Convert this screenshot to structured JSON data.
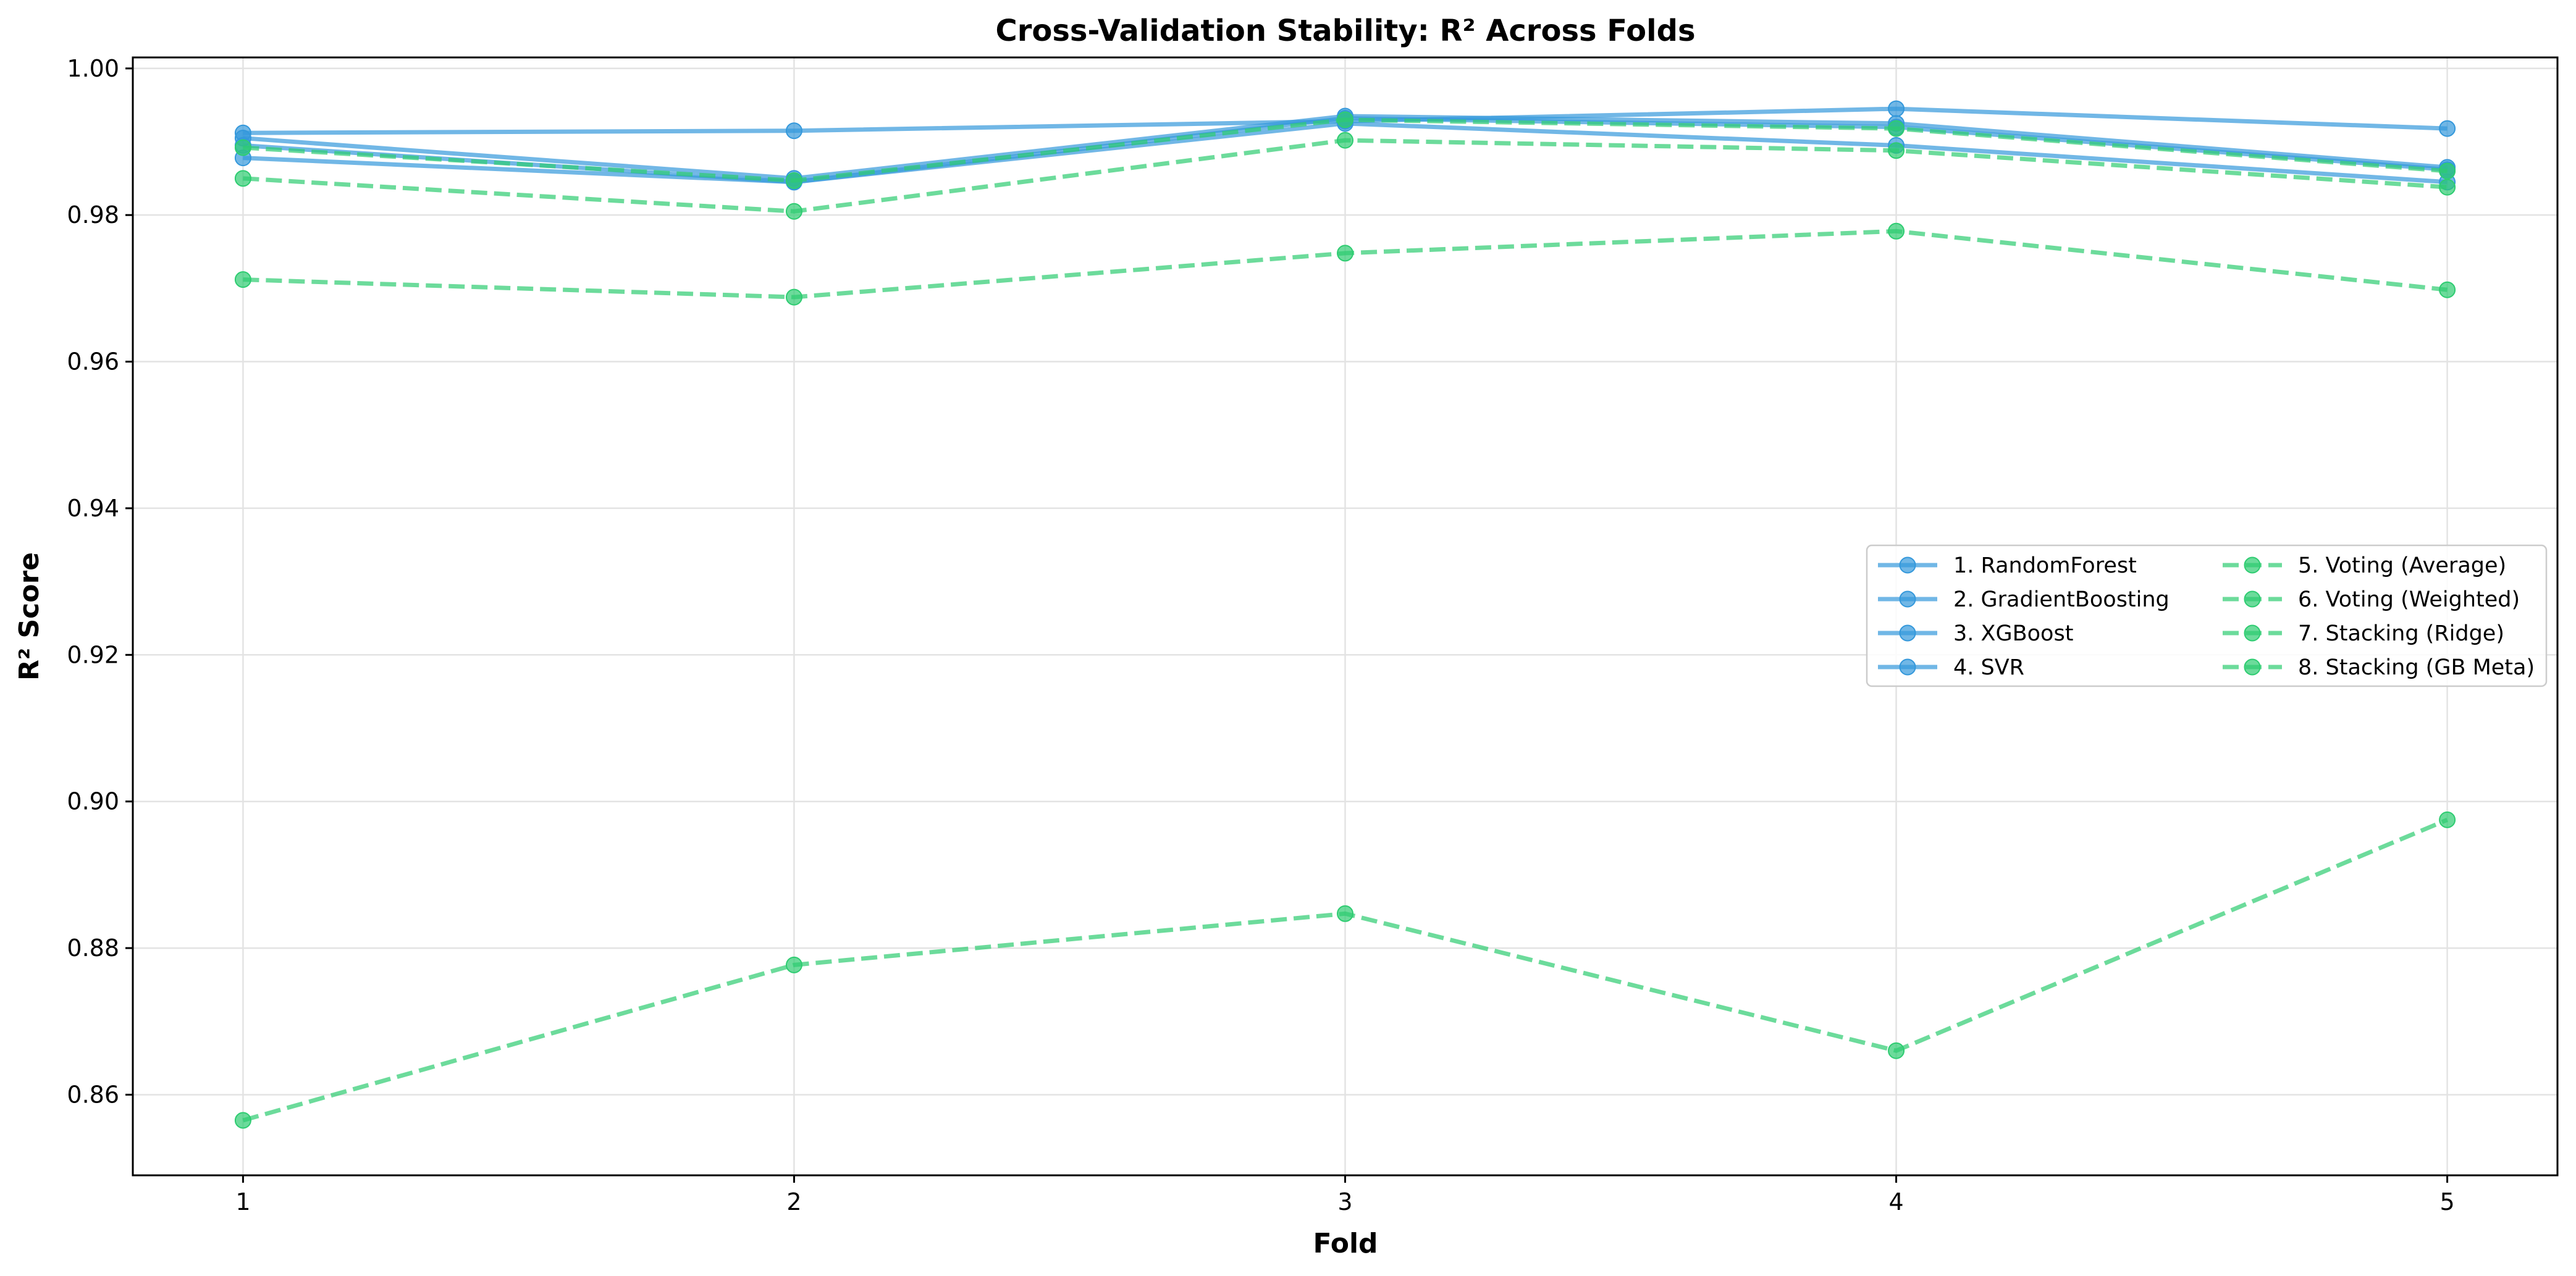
{
  "chart_data": {
    "type": "line",
    "title": "Cross-Validation Stability: R² Across Folds",
    "xlabel": "Fold",
    "ylabel": "R² Score",
    "x": [
      1,
      2,
      3,
      4,
      5
    ],
    "xlim": [
      0.8,
      5.2
    ],
    "ylim": [
      0.849,
      1.0015
    ],
    "yticks": [
      0.86,
      0.88,
      0.9,
      0.92,
      0.94,
      0.96,
      0.98,
      1.0
    ],
    "ytick_labels": [
      "0.86",
      "0.88",
      "0.90",
      "0.92",
      "0.94",
      "0.96",
      "0.98",
      "1.00"
    ],
    "xticks": [
      1,
      2,
      3,
      4,
      5
    ],
    "xtick_labels": [
      "1",
      "2",
      "3",
      "4",
      "5"
    ],
    "grid": true,
    "legend_position": "center-right",
    "legend_columns": 2,
    "series": [
      {
        "name": "1. RandomForest",
        "values": [
          0.9912,
          0.9915,
          0.9928,
          0.9945,
          0.9918
        ],
        "color": "#3498db",
        "style": "solid"
      },
      {
        "name": "2. GradientBoosting",
        "values": [
          0.9905,
          0.985,
          0.9935,
          0.9925,
          0.9865
        ],
        "color": "#3498db",
        "style": "solid"
      },
      {
        "name": "3. XGBoost",
        "values": [
          0.9878,
          0.9845,
          0.9932,
          0.992,
          0.9862
        ],
        "color": "#3498db",
        "style": "solid"
      },
      {
        "name": "4. SVR",
        "values": [
          0.9895,
          0.9845,
          0.9925,
          0.9895,
          0.9845
        ],
        "color": "#3498db",
        "style": "solid"
      },
      {
        "name": "5. Voting (Average)",
        "values": [
          0.9892,
          0.9847,
          0.993,
          0.9918,
          0.986
        ],
        "color": "#2ecc71",
        "style": "dashed"
      },
      {
        "name": "6. Voting (Weighted)",
        "values": [
          0.985,
          0.9805,
          0.9902,
          0.9888,
          0.9838
        ],
        "color": "#2ecc71",
        "style": "dashed"
      },
      {
        "name": "7. Stacking (Ridge)",
        "values": [
          0.9712,
          0.9688,
          0.9748,
          0.9778,
          0.9698
        ],
        "color": "#2ecc71",
        "style": "dashed"
      },
      {
        "name": "8. Stacking (GB Meta)",
        "values": [
          0.8565,
          0.8777,
          0.8847,
          0.866,
          0.8975
        ],
        "color": "#2ecc71",
        "style": "dashed"
      }
    ]
  }
}
